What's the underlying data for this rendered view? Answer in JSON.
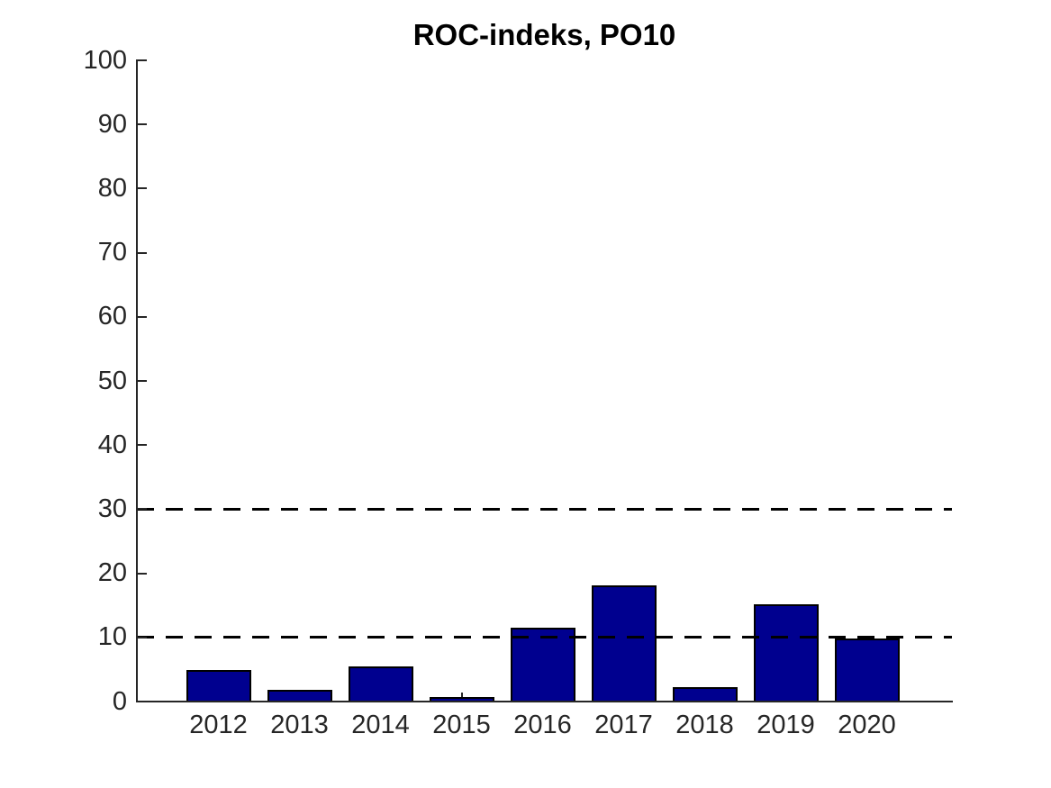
{
  "chart_data": {
    "type": "bar",
    "title": "ROC-indeks, PO10",
    "categories": [
      "2012",
      "2013",
      "2014",
      "2015",
      "2016",
      "2017",
      "2018",
      "2019",
      "2020"
    ],
    "values": [
      4.9,
      1.8,
      5.5,
      0.7,
      11.5,
      18.1,
      2.3,
      15.1,
      9.8
    ],
    "xlabel": "",
    "ylabel": "",
    "ylim": [
      0,
      100
    ],
    "yticks": [
      0,
      10,
      20,
      30,
      40,
      50,
      60,
      70,
      80,
      90,
      100
    ],
    "grid": "off",
    "legend": "none",
    "bar_color": "#00008F",
    "bar_edge_color": "#000000",
    "axis_color": "#262626",
    "reference_lines": [
      {
        "y": 10,
        "style": "dashed",
        "color": "#000000"
      },
      {
        "y": 30,
        "style": "dashed",
        "color": "#000000"
      }
    ]
  }
}
